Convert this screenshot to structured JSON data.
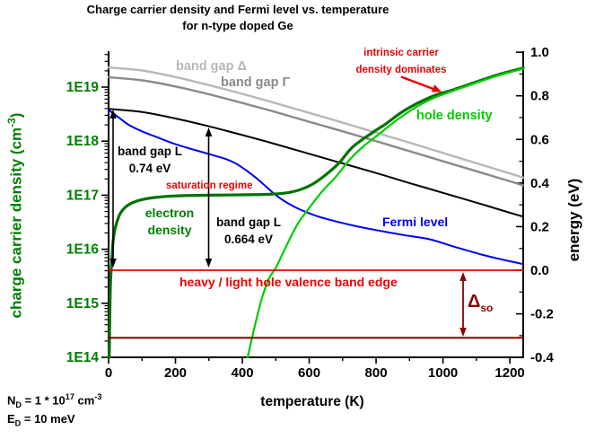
{
  "title": {
    "line1": "Charge carrier density and Fermi level vs. temperature",
    "line2": "for n-type doped Ge"
  },
  "x_axis": {
    "title": "temperature (K)",
    "min": 0,
    "max": 1240,
    "tick_values": [
      0,
      200,
      400,
      600,
      800,
      1000,
      1200
    ],
    "tick_labels": [
      "0",
      "200",
      "400",
      "600",
      "800",
      "1000",
      "1200"
    ],
    "minor_step": 100
  },
  "y_left_axis": {
    "title_main": "charge carrier density (cm",
    "title_sup": "-3",
    "title_close": ")",
    "color": "#008000",
    "scale": "log",
    "tick_exponents": [
      19,
      18,
      17,
      16,
      15,
      14
    ],
    "tick_labels": [
      "1E19",
      "1E18",
      "1E17",
      "1E16",
      "1E15",
      "1E14"
    ]
  },
  "y_right_axis": {
    "title": "energy (eV)",
    "tick_values": [
      1.0,
      0.8,
      0.6,
      0.4,
      0.2,
      0.0,
      -0.2,
      -0.4
    ],
    "tick_labels": [
      "1.0",
      "0.8",
      "0.6",
      "0.4",
      "0.2",
      "0.0",
      "-0.2",
      "-0.4"
    ],
    "minor_step": 0.1
  },
  "annotations": {
    "band_gap_delta": "band gap Δ",
    "band_gap_gamma": "band gap Γ",
    "band_gap_L_left_line1": "band gap L",
    "band_gap_L_left_line2": "0.74 eV",
    "saturation_regime": "saturation regime",
    "electron_line1": "electron",
    "electron_line2": "density",
    "band_gap_L_right_line1": "band gap L",
    "band_gap_L_right_line2": "0.664 eV",
    "fermi_level": "Fermi level",
    "hole_density": "hole density",
    "intrinsic_line1": "intrinsic carrier",
    "intrinsic_line2": "density dominates",
    "valence_band_edge": "heavy / light hole valence band edge",
    "delta_so_sym": "Δ",
    "delta_so_sub": "so"
  },
  "doping": {
    "n_sym": "N",
    "n_sub": "D",
    "n_eq": " = 1 * 10",
    "n_exp": "17",
    "n_unit": " cm",
    "n_unit_exp": "-3",
    "e_sym": "E",
    "e_sub": "D",
    "e_eq": " = 10 meV"
  },
  "chart_data": {
    "type": "line",
    "title": "Charge carrier density and Fermi level vs. temperature for n-type doped Ge",
    "xlabel": "temperature (K)",
    "ylabel_left": "charge carrier density (cm-3)",
    "ylabel_right": "energy (eV)",
    "x_range": [
      0,
      1240
    ],
    "energy_range": [
      -0.4,
      1.0
    ],
    "density_range": [
      100000000000000.0,
      4.5e+19
    ],
    "grid": false,
    "legend": "labels drawn next to curves",
    "series": [
      {
        "name": "band gap Delta",
        "axis": "energy",
        "color": "#b8b8b8",
        "width": 2.4,
        "points": [
          [
            0,
            0.93
          ],
          [
            100,
            0.916
          ],
          [
            200,
            0.886
          ],
          [
            300,
            0.849
          ],
          [
            400,
            0.809
          ],
          [
            500,
            0.766
          ],
          [
            600,
            0.722
          ],
          [
            700,
            0.677
          ],
          [
            800,
            0.631
          ],
          [
            900,
            0.585
          ],
          [
            1000,
            0.538
          ],
          [
            1100,
            0.491
          ],
          [
            1200,
            0.444
          ],
          [
            1240,
            0.425
          ]
        ]
      },
      {
        "name": "band gap Gamma",
        "axis": "energy",
        "color": "#8a8a8a",
        "width": 2.4,
        "points": [
          [
            0,
            0.885
          ],
          [
            100,
            0.871
          ],
          [
            200,
            0.843
          ],
          [
            300,
            0.807
          ],
          [
            400,
            0.767
          ],
          [
            500,
            0.725
          ],
          [
            600,
            0.681
          ],
          [
            700,
            0.637
          ],
          [
            800,
            0.592
          ],
          [
            900,
            0.546
          ],
          [
            1000,
            0.5
          ],
          [
            1100,
            0.454
          ],
          [
            1200,
            0.408
          ],
          [
            1240,
            0.389
          ]
        ]
      },
      {
        "name": "band gap L",
        "axis": "energy",
        "color": "#000000",
        "width": 2,
        "points": [
          [
            0,
            0.74
          ],
          [
            100,
            0.726
          ],
          [
            200,
            0.696
          ],
          [
            300,
            0.66
          ],
          [
            400,
            0.62
          ],
          [
            500,
            0.578
          ],
          [
            600,
            0.534
          ],
          [
            700,
            0.49
          ],
          [
            800,
            0.446
          ],
          [
            900,
            0.4
          ],
          [
            1000,
            0.355
          ],
          [
            1100,
            0.31
          ],
          [
            1200,
            0.264
          ],
          [
            1240,
            0.246
          ]
        ]
      },
      {
        "name": "Fermi level",
        "axis": "energy",
        "color": "#0000f0",
        "width": 2,
        "points": [
          [
            0,
            0.735
          ],
          [
            30,
            0.701
          ],
          [
            60,
            0.667
          ],
          [
            100,
            0.637
          ],
          [
            150,
            0.607
          ],
          [
            200,
            0.578
          ],
          [
            250,
            0.555
          ],
          [
            300,
            0.533
          ],
          [
            350,
            0.51
          ],
          [
            380,
            0.49
          ],
          [
            410,
            0.46
          ],
          [
            440,
            0.425
          ],
          [
            470,
            0.385
          ],
          [
            500,
            0.345
          ],
          [
            530,
            0.313
          ],
          [
            570,
            0.28
          ],
          [
            620,
            0.25
          ],
          [
            680,
            0.224
          ],
          [
            740,
            0.202
          ],
          [
            800,
            0.184
          ],
          [
            880,
            0.162
          ],
          [
            960,
            0.142
          ],
          [
            1040,
            0.105
          ],
          [
            1120,
            0.07
          ],
          [
            1180,
            0.048
          ],
          [
            1240,
            0.028
          ]
        ]
      },
      {
        "name": "electron density",
        "axis": "density",
        "color": "#007300",
        "width": 3.2,
        "points": [
          [
            2,
            100000000000000.0
          ],
          [
            4,
            800000000000000.0
          ],
          [
            6,
            2500000000000000.0
          ],
          [
            9,
            5500000000000000.0
          ],
          [
            13,
            1.3e+16
          ],
          [
            18,
            2.2e+16
          ],
          [
            25,
            3.2e+16
          ],
          [
            35,
            4.6e+16
          ],
          [
            50,
            6e+16
          ],
          [
            70,
            7.2e+16
          ],
          [
            100,
            8.3e+16
          ],
          [
            140,
            9.1e+16
          ],
          [
            200,
            9.7e+16
          ],
          [
            300,
            1e+17
          ],
          [
            420,
            1.02e+17
          ],
          [
            480,
            1.04e+17
          ],
          [
            530,
            1.1e+17
          ],
          [
            570,
            1.25e+17
          ],
          [
            610,
            1.6e+17
          ],
          [
            650,
            2.4e+17
          ],
          [
            690,
            4e+17
          ],
          [
            730,
            7.8e+17
          ],
          [
            790,
            1.45e+18
          ],
          [
            830,
            2.1e+18
          ],
          [
            885,
            3.7e+18
          ],
          [
            965,
            6.6e+18
          ],
          [
            1030,
            8.9e+18
          ],
          [
            1100,
            1.25e+19
          ],
          [
            1165,
            1.7e+19
          ],
          [
            1240,
            2.25e+19
          ]
        ]
      },
      {
        "name": "hole density",
        "axis": "density",
        "color": "#00cc00",
        "width": 2.2,
        "points": [
          [
            416,
            100000000000000.0
          ],
          [
            436,
            350000000000000.0
          ],
          [
            458,
            1200000000000000.0
          ],
          [
            480,
            2900000000000000.0
          ],
          [
            500,
            4500000000000000.0
          ],
          [
            530,
            1.1e+16
          ],
          [
            565,
            2.9e+16
          ],
          [
            600,
            5.8e+16
          ],
          [
            640,
            1.2e+17
          ],
          [
            680,
            2.2e+17
          ],
          [
            722,
            4.6e+17
          ],
          [
            762,
            8e+17
          ],
          [
            802,
            1.25e+18
          ],
          [
            856,
            2.3e+18
          ],
          [
            910,
            3.9e+18
          ],
          [
            965,
            6e+18
          ],
          [
            1030,
            8.5e+18
          ],
          [
            1100,
            1.2e+19
          ],
          [
            1165,
            1.63e+19
          ],
          [
            1240,
            2.18e+19
          ]
        ]
      },
      {
        "name": "heavy / light hole valence band edge",
        "axis": "energy",
        "color": "#ee0000",
        "width": 1.8,
        "points": [
          [
            0,
            0.0
          ],
          [
            1240,
            0.0
          ]
        ]
      },
      {
        "name": "split-off valence band (Delta so)",
        "axis": "energy",
        "color": "#8b0000",
        "width": 2,
        "points": [
          [
            0,
            -0.31
          ],
          [
            1240,
            -0.31
          ]
        ]
      }
    ],
    "markers": {
      "band_gap_L_at_0K_eV": 0.74,
      "band_gap_L_at_300K_eV": 0.664,
      "donor_density_cm3": 1e+17,
      "donor_energy_meV": 10,
      "delta_so_eV": 0.3
    }
  }
}
